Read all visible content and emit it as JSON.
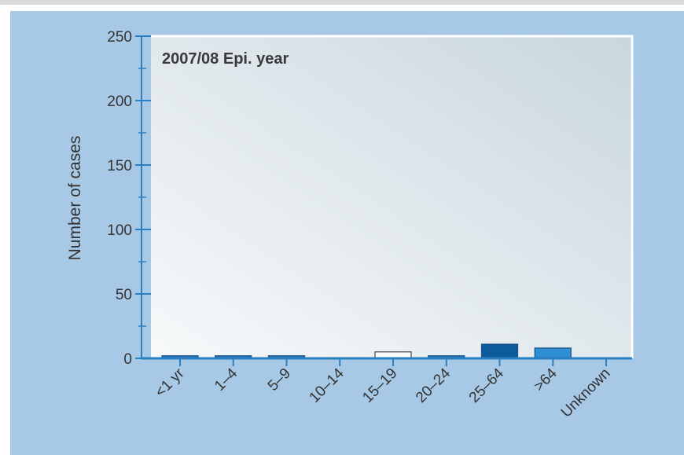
{
  "chart_data": {
    "type": "bar",
    "title": "2007/08 Epi. year",
    "xlabel": "",
    "ylabel": "Number of cases",
    "ylim": [
      0,
      250
    ],
    "yticks": [
      0,
      50,
      100,
      150,
      200,
      250
    ],
    "categories": [
      "<1 yr",
      "1–4",
      "5–9",
      "10–14",
      "15–19",
      "20–24",
      "25–64",
      ">64",
      "Unknown"
    ],
    "values": [
      2,
      2,
      2,
      0,
      5,
      2,
      11,
      8,
      0
    ],
    "bar_colors": [
      "#2878bd",
      "#2878bd",
      "#2878bd",
      "#2878bd",
      "#ffffff",
      "#2878bd",
      "#0d5a9c",
      "#2e8fd4",
      "#2878bd"
    ],
    "grid": false,
    "colors": {
      "background": "#a7c9e6",
      "plot_area": "#e4ecef",
      "axis": "#2a7fc1",
      "frame": "#ffffff"
    }
  }
}
